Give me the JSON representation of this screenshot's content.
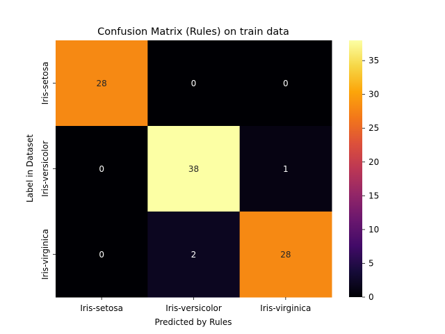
{
  "chart_data": {
    "type": "heatmap",
    "title": "Confusion Matrix (Rules) on train data",
    "xlabel": "Predicted by Rules",
    "ylabel": "Label in Dataset",
    "x_categories": [
      "Iris-setosa",
      "Iris-versicolor",
      "Iris-virginica"
    ],
    "y_categories": [
      "Iris-setosa",
      "Iris-versicolor",
      "Iris-virginica"
    ],
    "values": [
      [
        28,
        0,
        0
      ],
      [
        0,
        38,
        1
      ],
      [
        0,
        2,
        28
      ]
    ],
    "colormap": "inferno",
    "color_range": [
      0,
      38
    ],
    "colorbar_ticks": [
      0,
      5,
      10,
      15,
      20,
      25,
      30,
      35
    ],
    "grid": false
  }
}
